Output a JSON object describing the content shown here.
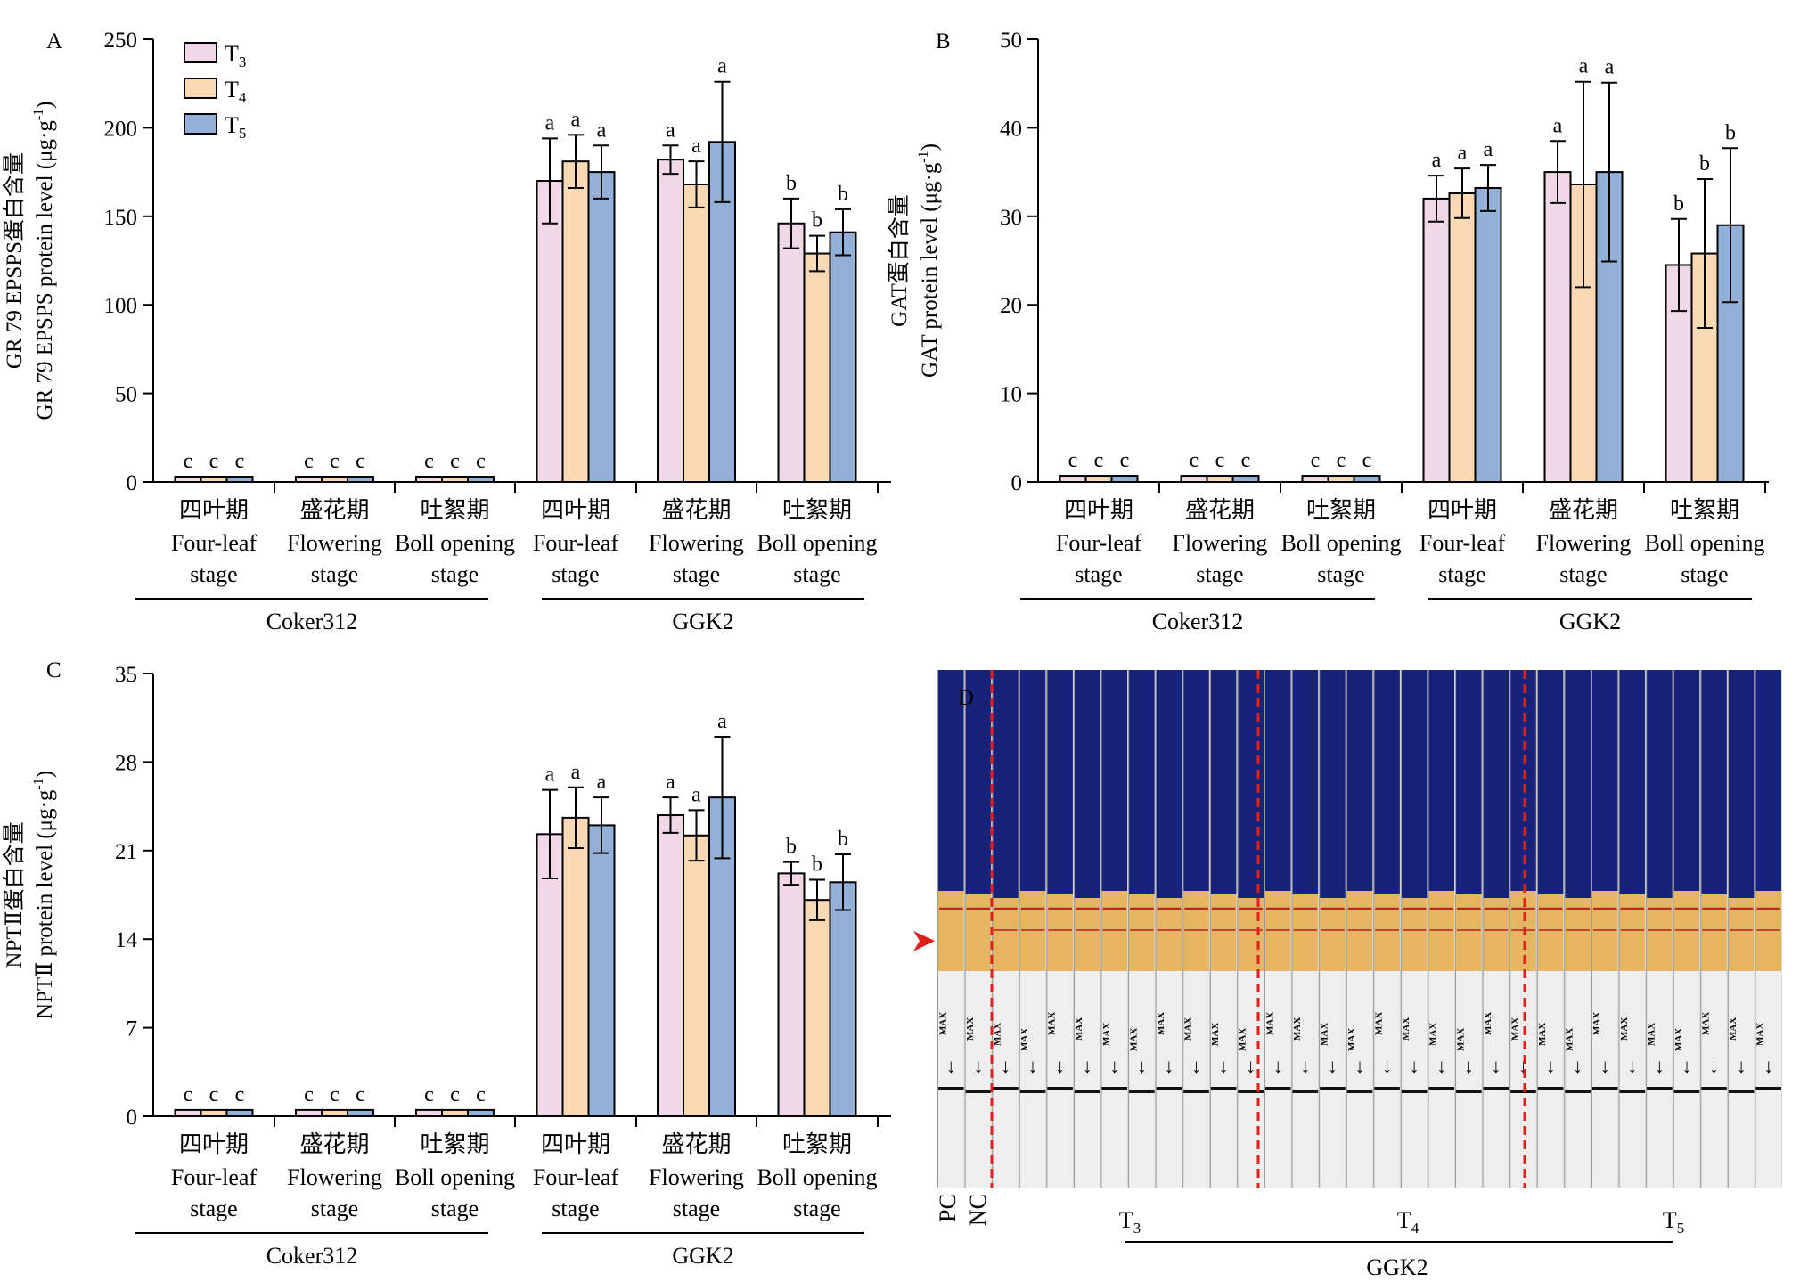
{
  "colors": {
    "T3": "#f1d8e6",
    "T4": "#f8d9b4",
    "T5": "#93b0d9",
    "stroke": "#000000",
    "cut_line": "#e0211b",
    "arrow": "#e0211b"
  },
  "categories_cn": [
    "四叶期",
    "盛花期",
    "吐絮期",
    "四叶期",
    "盛花期",
    "吐絮期"
  ],
  "categories_en": [
    "Four-leaf",
    "Flowering",
    "Boll opening",
    "Four-leaf",
    "Flowering",
    "Boll opening"
  ],
  "stage_word": "stage",
  "groups": [
    "Coker312",
    "GGK2"
  ],
  "legend": [
    {
      "base": "T",
      "sub": "3",
      "color_key": "T3"
    },
    {
      "base": "T",
      "sub": "4",
      "color_key": "T4"
    },
    {
      "base": "T",
      "sub": "5",
      "color_key": "T5"
    }
  ],
  "chart_data": [
    {
      "panel": "A",
      "type": "bar",
      "ylabel_cn": "GR 79 EPSPS蛋白含量",
      "ylabel_en": "GR 79 EPSPS protein level (μg·g",
      "ylabel_sup": "-1",
      "ylabel_close": ")",
      "ylim": [
        0,
        250
      ],
      "yticks": [
        0,
        50,
        100,
        150,
        200,
        250
      ],
      "series": [
        {
          "name": "T3",
          "values": [
            3,
            3,
            3,
            170,
            182,
            146
          ],
          "errors": [
            0,
            0,
            0,
            24,
            8,
            14
          ],
          "letters": [
            "c",
            "c",
            "c",
            "a",
            "a",
            "b"
          ]
        },
        {
          "name": "T4",
          "values": [
            3,
            3,
            3,
            181,
            168,
            129
          ],
          "errors": [
            0,
            0,
            0,
            15,
            13,
            10
          ],
          "letters": [
            "c",
            "c",
            "c",
            "a",
            "a",
            "b"
          ]
        },
        {
          "name": "T5",
          "values": [
            3,
            3,
            3,
            175,
            192,
            141
          ],
          "errors": [
            0,
            0,
            0,
            15,
            34,
            13
          ],
          "letters": [
            "c",
            "c",
            "c",
            "a",
            "a",
            "b"
          ]
        }
      ]
    },
    {
      "panel": "B",
      "type": "bar",
      "ylabel_cn": "GAT蛋白含量",
      "ylabel_en": "GAT protein level (μg·g",
      "ylabel_sup": "-1",
      "ylabel_close": ")",
      "ylim": [
        0,
        50
      ],
      "yticks": [
        0,
        10,
        20,
        30,
        40,
        50
      ],
      "series": [
        {
          "name": "T3",
          "values": [
            0.7,
            0.7,
            0.7,
            32,
            35,
            24.5
          ],
          "errors": [
            0,
            0,
            0,
            2.6,
            3.5,
            5.2
          ],
          "letters": [
            "c",
            "c",
            "c",
            "a",
            "a",
            "b"
          ]
        },
        {
          "name": "T4",
          "values": [
            0.7,
            0.7,
            0.7,
            32.6,
            33.6,
            25.8
          ],
          "errors": [
            0,
            0,
            0,
            2.8,
            11.6,
            8.4
          ],
          "letters": [
            "c",
            "c",
            "c",
            "a",
            "a",
            "b"
          ]
        },
        {
          "name": "T5",
          "values": [
            0.7,
            0.7,
            0.7,
            33.2,
            35,
            29
          ],
          "errors": [
            0,
            0,
            0,
            2.6,
            10.1,
            8.7
          ],
          "letters": [
            "c",
            "c",
            "c",
            "a",
            "a",
            "b"
          ]
        }
      ]
    },
    {
      "panel": "C",
      "type": "bar",
      "ylabel_cn": "NPTⅡ蛋白含量",
      "ylabel_en": "NPTⅡ protein level (μg·g",
      "ylabel_sup": "-1",
      "ylabel_close": ")",
      "ylim": [
        0,
        35
      ],
      "yticks": [
        0,
        7,
        14,
        21,
        28,
        35
      ],
      "series": [
        {
          "name": "T3",
          "values": [
            0.5,
            0.5,
            0.5,
            22.3,
            23.8,
            19.2
          ],
          "errors": [
            0,
            0,
            0,
            3.5,
            1.4,
            0.9
          ],
          "letters": [
            "c",
            "c",
            "c",
            "a",
            "a",
            "b"
          ]
        },
        {
          "name": "T4",
          "values": [
            0.5,
            0.5,
            0.5,
            23.6,
            22.2,
            17.1
          ],
          "errors": [
            0,
            0,
            0,
            2.4,
            2.0,
            1.6
          ],
          "letters": [
            "c",
            "c",
            "c",
            "a",
            "a",
            "b"
          ]
        },
        {
          "name": "T5",
          "values": [
            0.5,
            0.5,
            0.5,
            23.0,
            25.2,
            18.5
          ],
          "errors": [
            0,
            0,
            0,
            2.2,
            4.8,
            2.2
          ],
          "letters": [
            "c",
            "c",
            "c",
            "a",
            "a",
            "b"
          ]
        }
      ]
    }
  ],
  "panel_d": {
    "label": "D",
    "strip_marker": "MAX",
    "bottom_labels": [
      "PC",
      "NC"
    ],
    "sample_labels": [
      {
        "base": "T",
        "sub": "3"
      },
      {
        "base": "T",
        "sub": "4"
      },
      {
        "base": "T",
        "sub": "5"
      }
    ],
    "group_label": "GGK2",
    "colors": {
      "strip_top": "#17227a",
      "strip_mid": "#e5b561",
      "strip_bottom": "#eeeeee",
      "band": "#b32d22",
      "black_line": "#111111"
    }
  }
}
